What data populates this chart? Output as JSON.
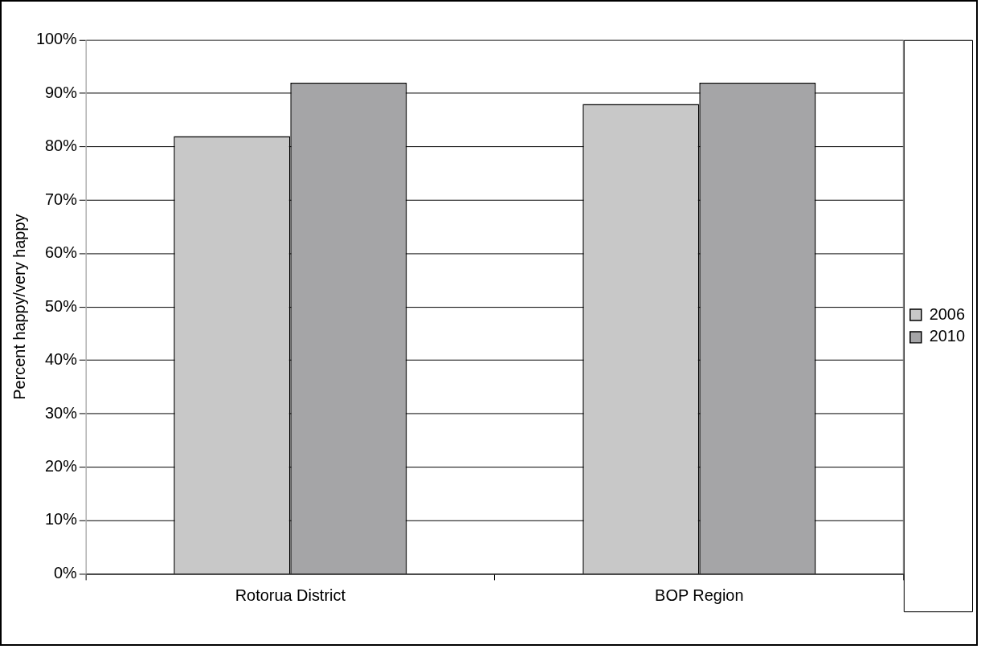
{
  "chart_data": {
    "type": "bar",
    "ylabel": "Percent happy/very happy",
    "categories": [
      "Rotorua District",
      "BOP Region"
    ],
    "series": [
      {
        "name": "2006",
        "color": "#c8c8c8",
        "values": [
          82,
          88
        ]
      },
      {
        "name": "2010",
        "color": "#a5a5a7",
        "values": [
          92,
          92
        ]
      }
    ],
    "ylim": [
      0,
      100
    ],
    "yticks": [
      {
        "value": 0,
        "label": "0%"
      },
      {
        "value": 10,
        "label": "10%"
      },
      {
        "value": 20,
        "label": "20%"
      },
      {
        "value": 30,
        "label": "30%"
      },
      {
        "value": 40,
        "label": "40%"
      },
      {
        "value": 50,
        "label": "50%"
      },
      {
        "value": 60,
        "label": "60%"
      },
      {
        "value": 70,
        "label": "70%"
      },
      {
        "value": 80,
        "label": "80%"
      },
      {
        "value": 90,
        "label": "90%"
      },
      {
        "value": 100,
        "label": "100%"
      }
    ],
    "grid": "y",
    "legend": "right"
  }
}
